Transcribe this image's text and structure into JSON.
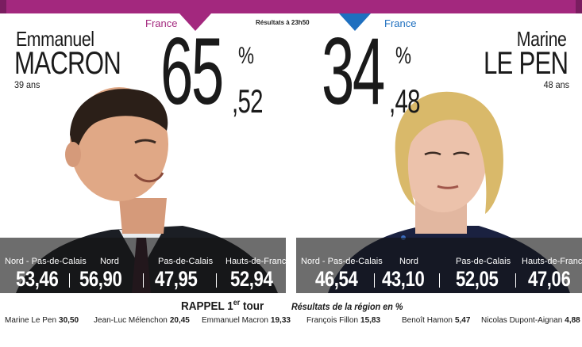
{
  "header": {
    "france_left": "France",
    "france_right": "France",
    "results_time": "Résultats à 23h50",
    "colors": {
      "macron": "#a3287e",
      "lepen": "#1e6fbf"
    }
  },
  "candidates": [
    {
      "first_name": "Emmanuel",
      "last_name": "MACRON",
      "age": "39 ans",
      "percent_int": "65",
      "percent_sign": "%",
      "percent_dec": ",52",
      "regions": [
        {
          "name": "Nord - Pas-de-Calais",
          "value": "53,46"
        },
        {
          "name": "Nord",
          "value": "56,90"
        },
        {
          "name": "Pas-de-Calais",
          "value": "47,95"
        },
        {
          "name": "Hauts-de-France",
          "value": "52,94"
        }
      ]
    },
    {
      "first_name": "Marine",
      "last_name": "LE PEN",
      "age": "48 ans",
      "percent_int": "34",
      "percent_sign": "%",
      "percent_dec": ",48",
      "regions": [
        {
          "name": "Nord - Pas-de-Calais",
          "value": "46,54"
        },
        {
          "name": "Nord",
          "value": "43,10"
        },
        {
          "name": "Pas-de-Calais",
          "value": "52,05"
        },
        {
          "name": "Hauts-de-France",
          "value": "47,06"
        }
      ]
    }
  ],
  "rappel": {
    "title_main": "RAPPEL 1",
    "title_sup": "er",
    "title_end": " tour",
    "subtitle": "Résultats de la région en %",
    "results": [
      {
        "name": "Marine Le Pen",
        "value": "30,50"
      },
      {
        "name": "Jean-Luc Mélenchon",
        "value": "20,45"
      },
      {
        "name": "Emmanuel Macron",
        "value": "19,33"
      },
      {
        "name": "François Fillon",
        "value": "15,83"
      },
      {
        "name": "Benoît Hamon",
        "value": "5,47"
      },
      {
        "name": "Nicolas Dupont-Aignan",
        "value": "4,88"
      }
    ]
  }
}
